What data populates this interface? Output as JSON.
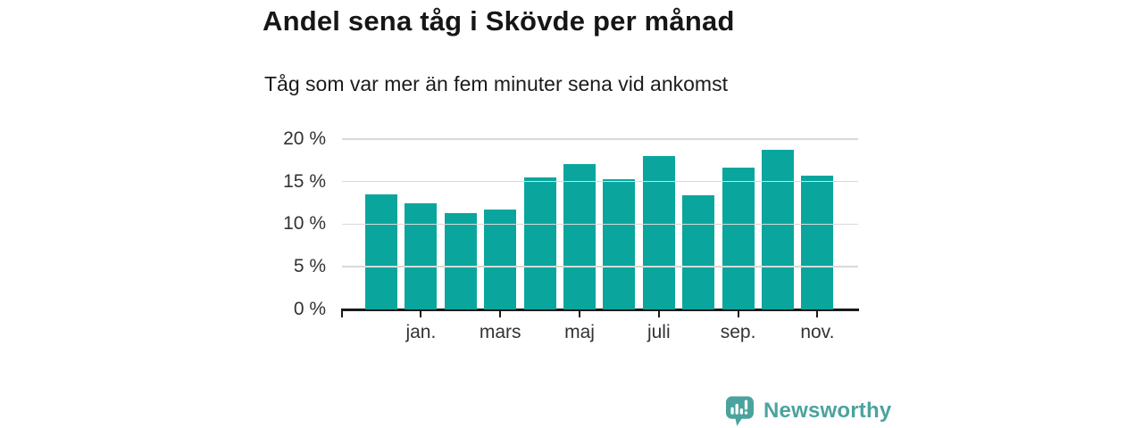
{
  "chart_data": {
    "type": "bar",
    "title": "Andel sena tåg i Skövde per månad",
    "subtitle": "Tåg som var mer än fem minuter sena vid ankomst",
    "unit": "%",
    "categories": [
      "",
      "jan.",
      "",
      "mars",
      "",
      "maj",
      "",
      "juli",
      "",
      "sep.",
      "",
      "nov."
    ],
    "values": [
      13.5,
      12.4,
      11.3,
      11.7,
      15.5,
      17.1,
      15.3,
      18.0,
      13.4,
      16.6,
      18.7,
      15.7
    ],
    "y_ticks": [
      {
        "value": 20,
        "label": "20 %"
      },
      {
        "value": 15,
        "label": "15 %"
      },
      {
        "value": 10,
        "label": "10 %"
      },
      {
        "value": 5,
        "label": "5 %"
      },
      {
        "value": 0,
        "label": "0 %"
      }
    ],
    "ylim": [
      0,
      20
    ],
    "grid": true,
    "legend": "none",
    "bar_color": "#0aa69e"
  },
  "footer": {
    "brand": "Newsworthy",
    "brand_color": "#4ba39e",
    "logo_icon": "newsworthy-speech-bubble-bar-chart-icon"
  }
}
